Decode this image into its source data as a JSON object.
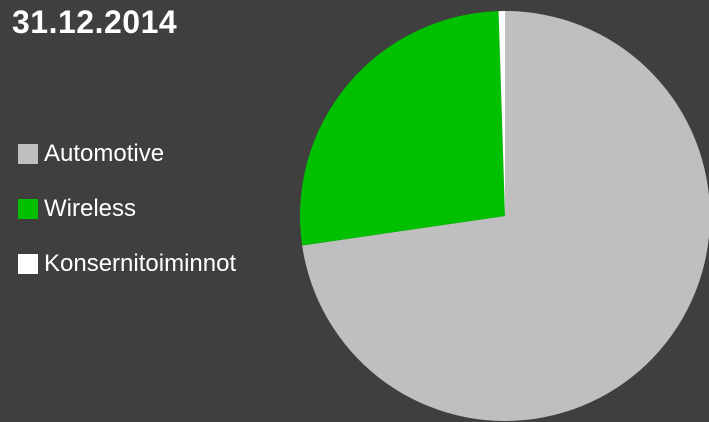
{
  "title": "31.12.2014",
  "chart_data": {
    "type": "pie",
    "title": "31.12.2014",
    "labels": [
      "Automotive",
      "Wireless",
      "Konsernitoiminnot"
    ],
    "values": [
      72.7,
      26.8,
      0.5
    ],
    "colors": [
      "#bfbfbf",
      "#00c000",
      "#ffffff"
    ],
    "start_angle_deg": 0,
    "direction": "clockwise",
    "legend_position": "left"
  }
}
